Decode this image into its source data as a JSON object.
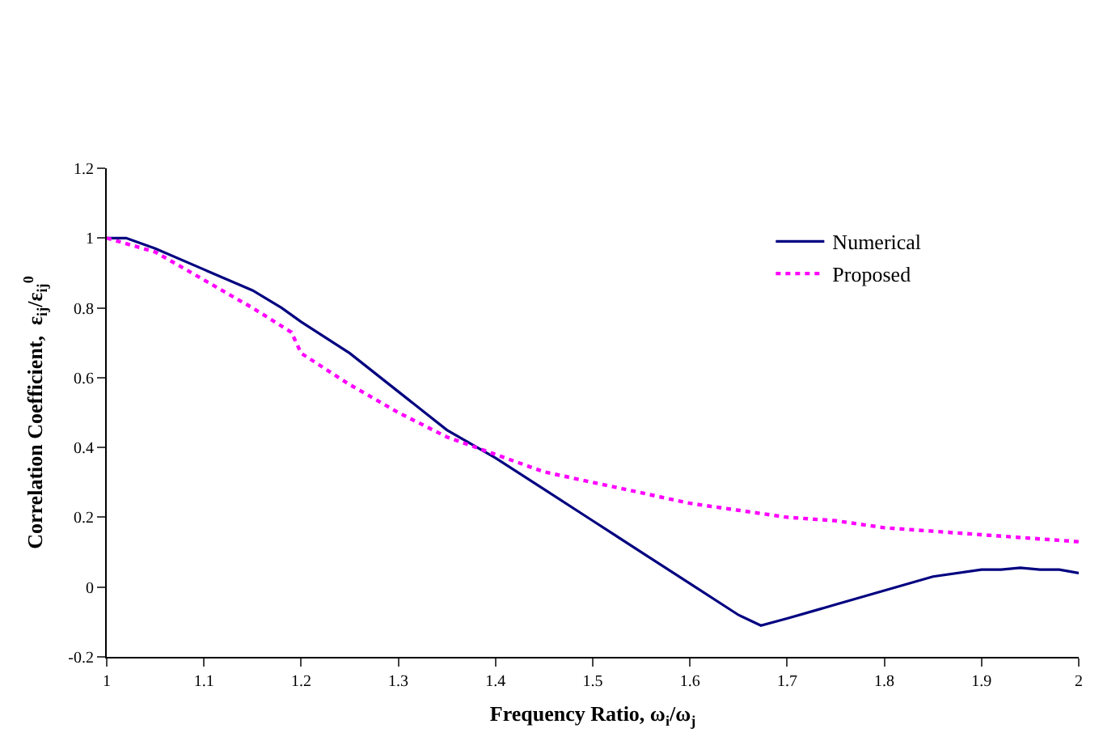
{
  "chart_data": {
    "type": "line",
    "xlabel": "Frequency Ratio, ω$_{i}$/ω$_{j}$",
    "ylabel": "Correlation Coefficient,  ε$_{ij}$/ε$_{ij}$$^{0}$",
    "xlim": [
      1,
      2
    ],
    "xticks": [
      1,
      1.1,
      1.2,
      1.3,
      1.4,
      1.5,
      1.6,
      1.7,
      1.8,
      1.9,
      2
    ],
    "ylim": [
      -0.2,
      1.2
    ],
    "yticks": [
      -0.2,
      0,
      0.2,
      0.4,
      0.6,
      0.8,
      1,
      1.2
    ],
    "grid": false,
    "legend": "top right",
    "marker": "none",
    "series": [
      {
        "name": "Numerical",
        "color": "#000080",
        "line_style": "solid",
        "x": [
          1,
          1.02,
          1.05,
          1.1,
          1.15,
          1.18,
          1.2,
          1.25,
          1.3,
          1.35,
          1.4,
          1.45,
          1.5,
          1.55,
          1.6,
          1.65,
          1.673,
          1.7,
          1.75,
          1.8,
          1.85,
          1.9,
          1.92,
          1.94,
          1.96,
          1.98,
          2
        ],
        "values": [
          1.0,
          1.0,
          0.97,
          0.91,
          0.85,
          0.8,
          0.76,
          0.67,
          0.56,
          0.45,
          0.37,
          0.28,
          0.19,
          0.1,
          0.01,
          -0.08,
          -0.11,
          -0.09,
          -0.05,
          -0.01,
          0.03,
          0.05,
          0.05,
          0.055,
          0.05,
          0.05,
          0.04
        ]
      },
      {
        "name": "Proposed",
        "color": "#ff00ff",
        "line_style": "dotted",
        "x": [
          1,
          1.05,
          1.1,
          1.15,
          1.19,
          1.2,
          1.25,
          1.3,
          1.35,
          1.4,
          1.45,
          1.5,
          1.55,
          1.6,
          1.65,
          1.7,
          1.75,
          1.8,
          1.85,
          1.9,
          1.95,
          2
        ],
        "values": [
          1.0,
          0.96,
          0.88,
          0.8,
          0.73,
          0.67,
          0.58,
          0.5,
          0.43,
          0.38,
          0.33,
          0.3,
          0.27,
          0.24,
          0.22,
          0.2,
          0.19,
          0.17,
          0.16,
          0.15,
          0.14,
          0.13
        ]
      }
    ]
  }
}
